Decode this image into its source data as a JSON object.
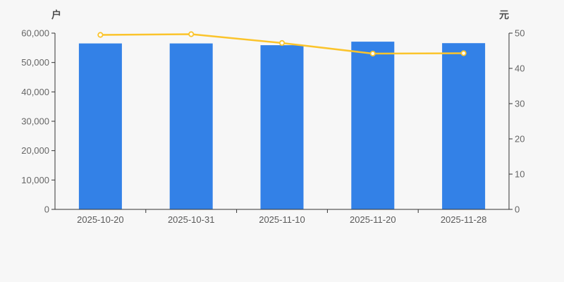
{
  "chart_data": {
    "type": "bar",
    "subtype": "bar-with-line-overlay",
    "title": "",
    "legend": "none",
    "grid": false,
    "background_color": "#f7f7f7",
    "axis_line_color": "#333333",
    "tick_label_color": "#666666",
    "category_label_color": "#595959",
    "categories": [
      "2025-10-20",
      "2025-10-31",
      "2025-11-10",
      "2025-11-20",
      "2025-11-28"
    ],
    "bars": {
      "axis": "left",
      "values": [
        56500,
        56500,
        55900,
        57100,
        56600
      ],
      "color": "#3381e7"
    },
    "line": {
      "axis": "right",
      "values": [
        49.5,
        49.7,
        47.2,
        44.2,
        44.3
      ],
      "color": "#fbc42c",
      "marker": "hollow-circle",
      "marker_fill": "#ffffff"
    },
    "left_axis": {
      "unit": "户",
      "min": 0,
      "max": 60000,
      "tick_step": 10000,
      "tick_labels": [
        "0",
        "10,000",
        "20,000",
        "30,000",
        "40,000",
        "50,000",
        "60,000"
      ]
    },
    "right_axis": {
      "unit": "元",
      "min": 0,
      "max": 50,
      "tick_step": 10,
      "tick_labels": [
        "0",
        "10",
        "20",
        "30",
        "40",
        "50"
      ]
    }
  }
}
